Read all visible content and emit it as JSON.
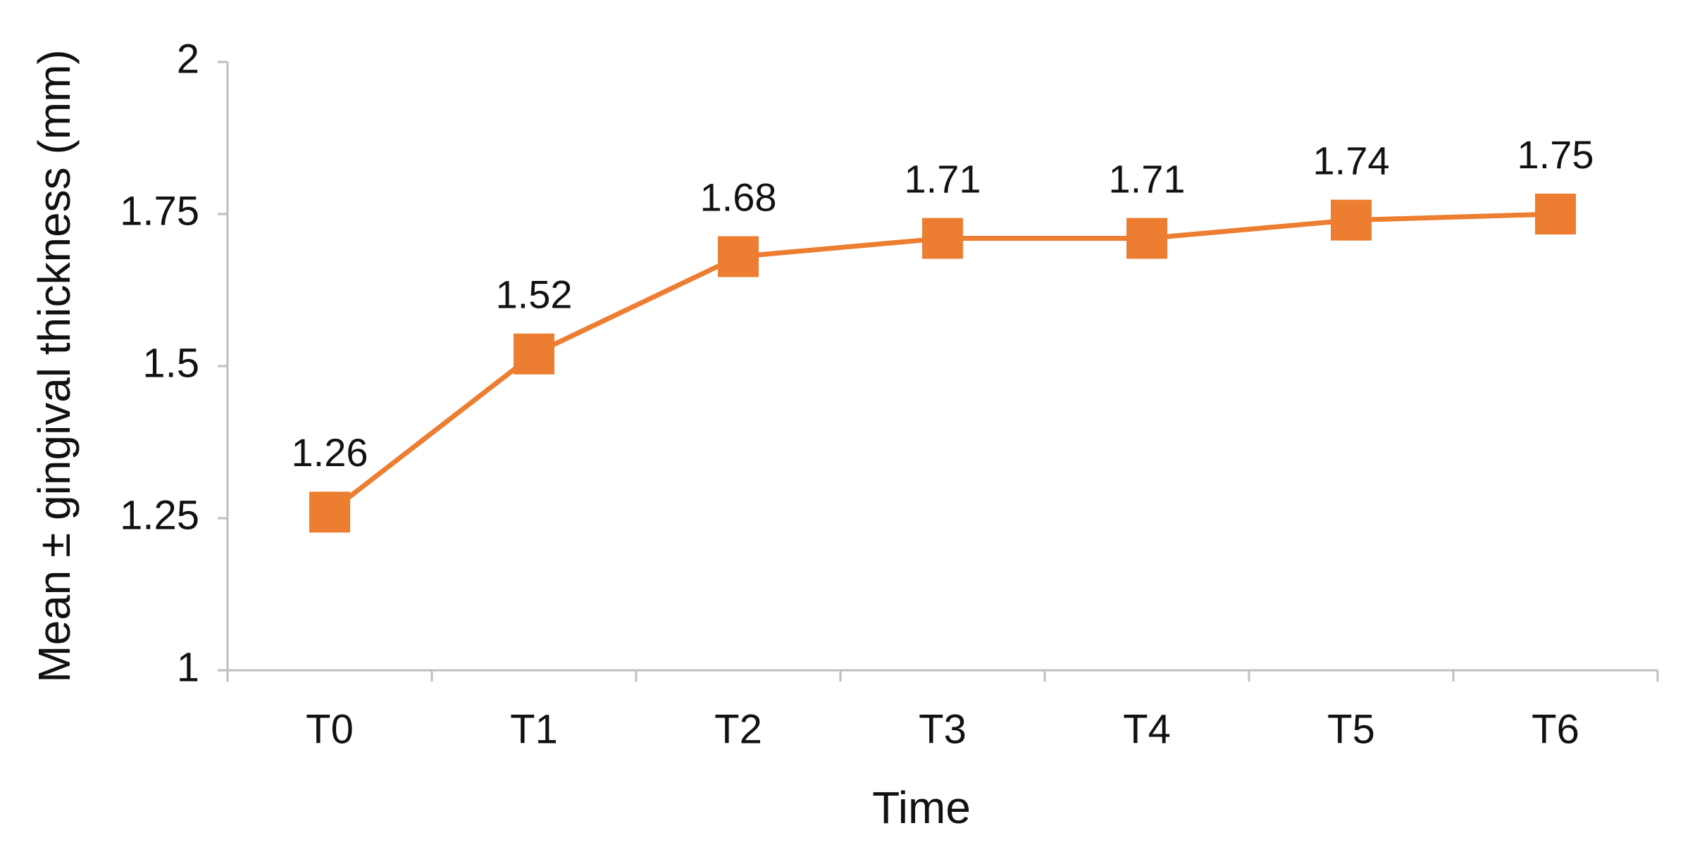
{
  "chart_data": {
    "type": "line",
    "x_label": "Time",
    "y_label": "Mean ± gingival thickness (mm)",
    "categories": [
      "T0",
      "T1",
      "T2",
      "T3",
      "T4",
      "T5",
      "T6"
    ],
    "values": [
      1.26,
      1.52,
      1.68,
      1.71,
      1.71,
      1.74,
      1.75
    ],
    "color": "#ed7d31",
    "ylim": [
      1,
      2
    ],
    "yticks": [
      1,
      1.25,
      1.5,
      1.75,
      2
    ],
    "grid": false
  }
}
